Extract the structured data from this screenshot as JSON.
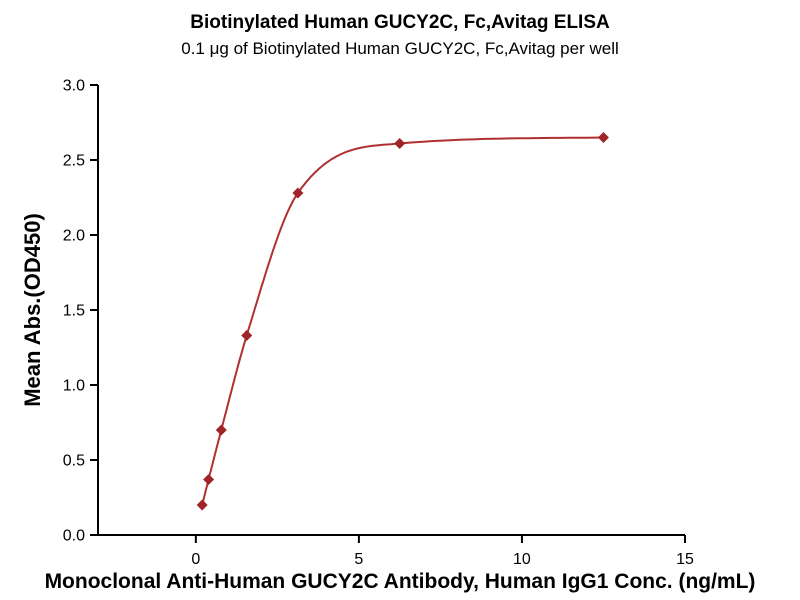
{
  "chart_data": {
    "type": "scatter",
    "title": "Biotinylated Human GUCY2C, Fc,Avitag ELISA",
    "subtitle": "0.1 μg of Biotinylated Human GUCY2C, Fc,Avitag per well",
    "xlabel": "Monoclonal Anti-Human GUCY2C Antibody, Human IgG1 Conc. (ng/mL)",
    "ylabel": "Mean Abs.(OD450)",
    "x": [
      0.195,
      0.39,
      0.78,
      1.56,
      3.13,
      6.25,
      12.5
    ],
    "y": [
      0.2,
      0.37,
      0.7,
      1.33,
      2.28,
      2.61,
      2.65
    ],
    "curve": "smooth 4PL-style fit through points",
    "marker_shape": "diamond",
    "grid": false,
    "legend": "none",
    "x_axis": {
      "min": -3,
      "max": 15,
      "ticks": [
        0,
        5,
        10,
        15
      ],
      "tick_labels": [
        "0",
        "5",
        "10",
        "15"
      ]
    },
    "y_axis": {
      "min": 0,
      "max": 3,
      "ticks": [
        0,
        0.5,
        1,
        1.5,
        2,
        2.5,
        3
      ],
      "tick_labels": [
        "0.0",
        "0.5",
        "1.0",
        "1.5",
        "2.0",
        "2.5",
        "3.0"
      ]
    },
    "colors": {
      "line": "#B03030",
      "marker": "#A02428",
      "axis": "#000000",
      "text": "#000000",
      "background": "#FFFFFF"
    }
  }
}
